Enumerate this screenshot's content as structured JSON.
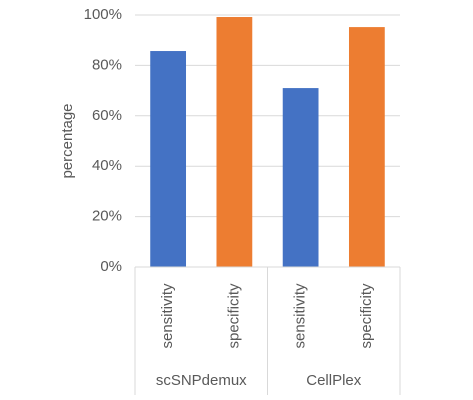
{
  "chart_data": {
    "type": "bar",
    "y_label": "percentage",
    "groups": [
      {
        "name": "scSNPdemux",
        "categories": [
          "sensitivity",
          "specificity"
        ],
        "values": [
          85.7,
          99.2
        ]
      },
      {
        "name": "CellPlex",
        "categories": [
          "sensitivity",
          "specificity"
        ],
        "values": [
          71,
          95.2
        ]
      }
    ],
    "colors": [
      "#4472c4",
      "#ed7d31"
    ],
    "ylim": [
      0,
      100
    ],
    "yticks": [
      {
        "value": 0,
        "label": "0%"
      },
      {
        "value": 20,
        "label": "20%"
      },
      {
        "value": 40,
        "label": "40%"
      },
      {
        "value": 60,
        "label": "60%"
      },
      {
        "value": 80,
        "label": "80%"
      },
      {
        "value": 100,
        "label": "100%"
      }
    ],
    "grid": true
  }
}
